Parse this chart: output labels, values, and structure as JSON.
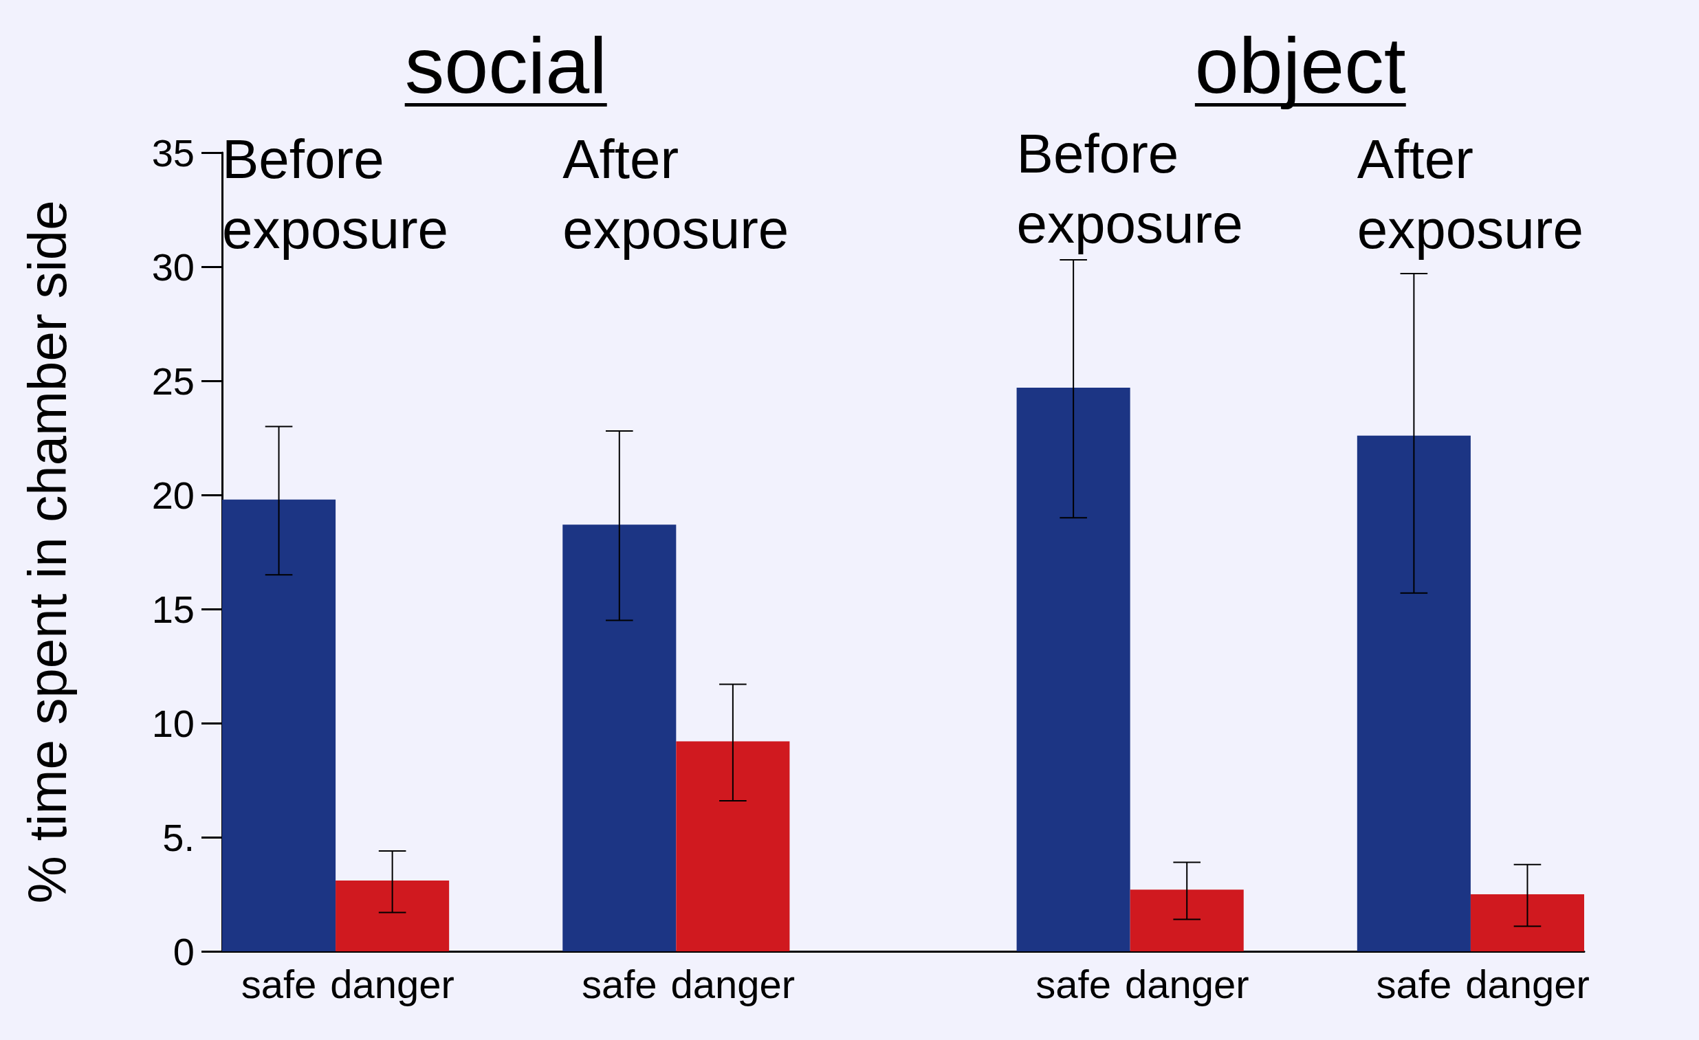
{
  "chart_data": {
    "type": "bar",
    "ylabel": "% time spent in chamber side",
    "categories": [
      "safe",
      "danger",
      null,
      "safe",
      "danger",
      null,
      null,
      "safe",
      "danger",
      null,
      "safe",
      "danger"
    ],
    "values": [
      19.8,
      3.1,
      null,
      18.7,
      9.2,
      null,
      null,
      24.7,
      2.7,
      null,
      22.6,
      2.5
    ],
    "colors": [
      "#1c3584",
      "#d0191f",
      null,
      "#1c3584",
      "#d0191f",
      null,
      null,
      "#1c3584",
      "#d0191f",
      null,
      "#1c3584",
      "#d0191f"
    ],
    "errors": [
      [
        16.5,
        23.0
      ],
      [
        1.7,
        4.4
      ],
      null,
      [
        14.5,
        22.8
      ],
      [
        6.6,
        11.7
      ],
      null,
      null,
      [
        19.0,
        30.3
      ],
      [
        1.4,
        3.9
      ],
      null,
      [
        15.7,
        29.7
      ],
      [
        1.1,
        3.8
      ]
    ],
    "ylim": [
      0,
      35
    ],
    "yticks": [
      0,
      {
        "value": 5,
        "label": "5."
      },
      10,
      15,
      20,
      25,
      30,
      35
    ],
    "annotations": [
      "social",
      "object",
      "Before exposure",
      "After exposure",
      "Before exposure",
      "After exposure"
    ],
    "grid": false
  }
}
